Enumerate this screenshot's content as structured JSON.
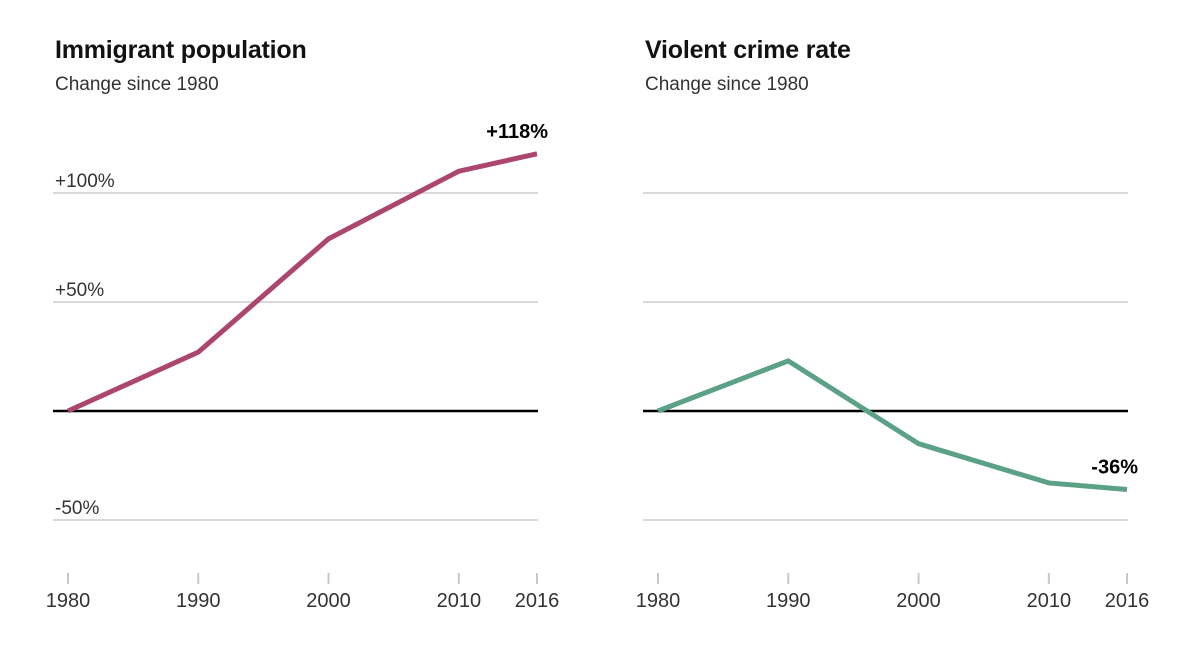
{
  "figure": {
    "background": "#ffffff"
  },
  "theme": {
    "title_color": "#121212",
    "subtitle_color": "#333333",
    "grid_color": "#d9d9d9",
    "zero_line_color": "#000000",
    "tick_mark_color": "#c9c9c9",
    "tick_label_color": "#333333",
    "annotation_color": "#000000"
  },
  "chart_data": [
    {
      "type": "line",
      "title": "Immigrant population",
      "subtitle": "Change since 1980",
      "x": [
        1980,
        1990,
        2000,
        2010,
        2016
      ],
      "x_tick_labels": [
        "1980",
        "1990",
        "2000",
        "2010",
        "2016"
      ],
      "values": [
        0,
        27,
        79,
        110,
        118
      ],
      "unit": "percent change",
      "y_ticks": [
        100,
        50,
        -50
      ],
      "y_tick_labels": [
        "+100%",
        "+50%",
        "-50%"
      ],
      "ylim": [
        -60,
        135
      ],
      "zero_baseline": true,
      "grid": "horizontal",
      "legend": "none",
      "annotation": "+118%",
      "line_color": "#ac466e"
    },
    {
      "type": "line",
      "title": "Violent crime rate",
      "subtitle": "Change since 1980",
      "x": [
        1980,
        1990,
        2000,
        2010,
        2016
      ],
      "x_tick_labels": [
        "1980",
        "1990",
        "2000",
        "2010",
        "2016"
      ],
      "values": [
        0,
        23,
        -15,
        -33,
        -36
      ],
      "unit": "percent change",
      "y_ticks": [
        100,
        50,
        -50
      ],
      "y_tick_labels": [],
      "ylim": [
        -60,
        135
      ],
      "zero_baseline": true,
      "grid": "horizontal",
      "legend": "none",
      "annotation": "-36%",
      "line_color": "#5ba185"
    }
  ]
}
